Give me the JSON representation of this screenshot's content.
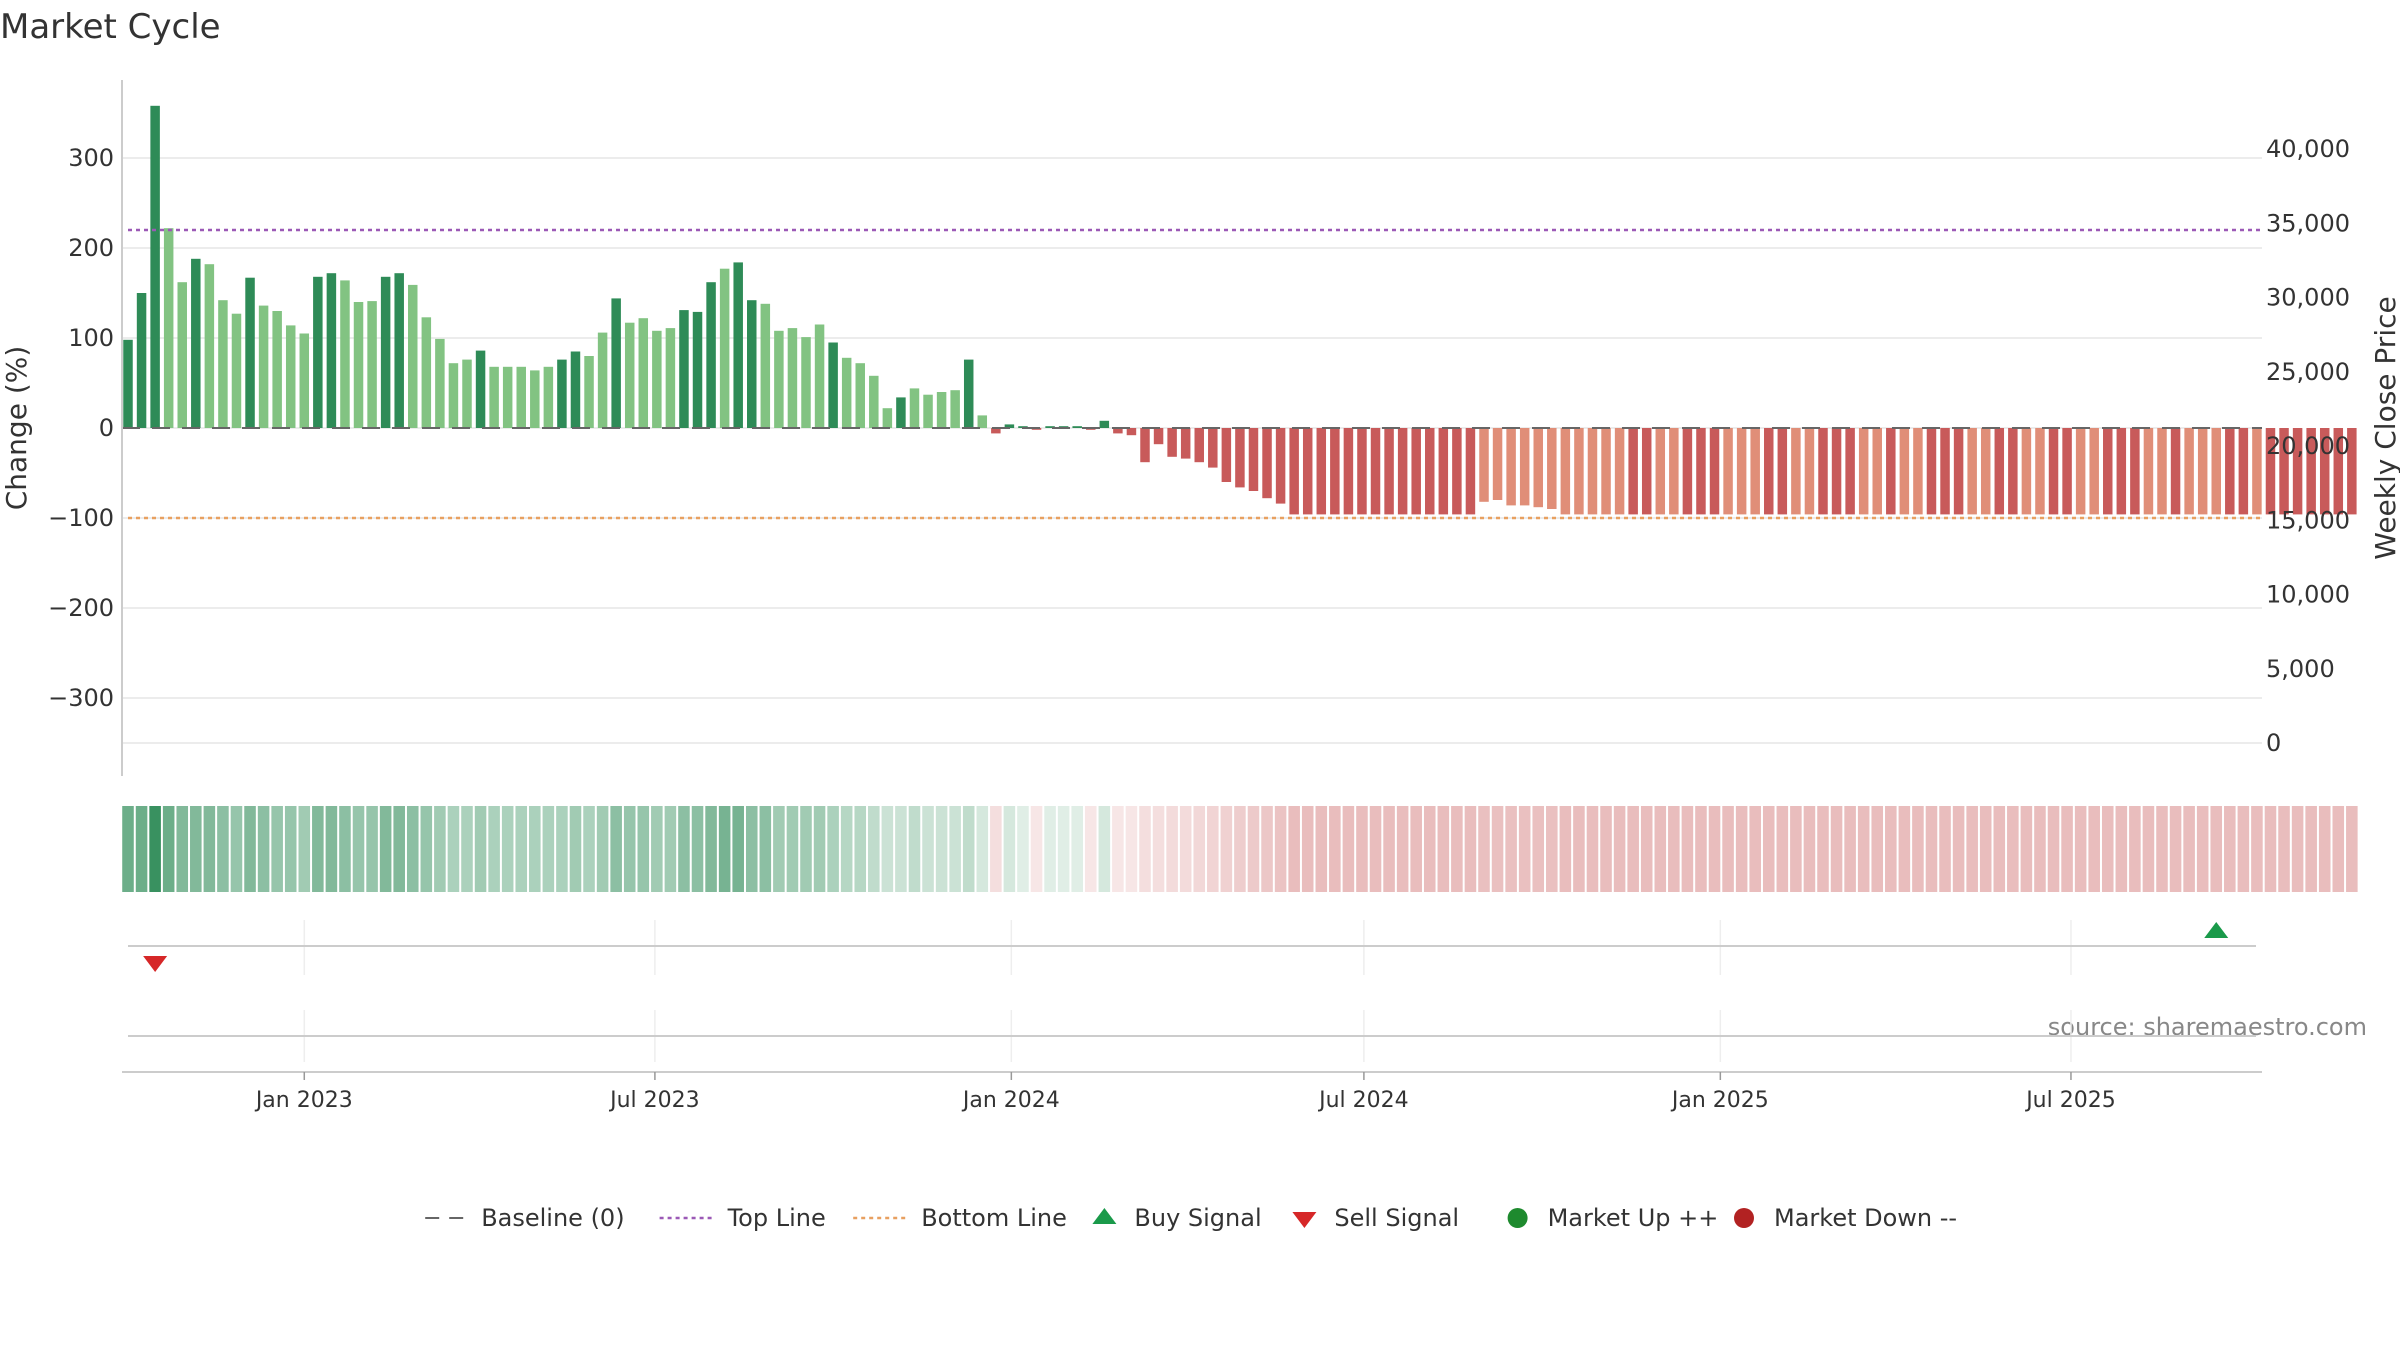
{
  "title": "Market Cycle",
  "source": "source: sharemaestro.com",
  "colors": {
    "bar_up_strong": "#2e8b57",
    "bar_up_light": "#82c382",
    "bar_down_strong": "#c85a5a",
    "bar_down_light": "#e08e78",
    "top_line": "#9b59b6",
    "bottom_line": "#e8a060",
    "baseline": "#666666",
    "buy": "#1a9a4a",
    "sell": "#d62728",
    "market_up": "#1e8a2e",
    "market_down": "#b22222",
    "grid": "#e6e6e6"
  },
  "chart_data": {
    "type": "bar",
    "title": "Market Cycle",
    "ylabel": "Change (%)",
    "y2label": "Weekly Close Price",
    "ylim": [
      -385,
      385
    ],
    "y_ticks": [
      300,
      200,
      100,
      0,
      -100,
      -200,
      -300
    ],
    "y_tick_labels": [
      "300",
      "200",
      "100",
      "0",
      "−100",
      "−200",
      "−300"
    ],
    "y2_ticks": [
      40000,
      35000,
      30000,
      25000,
      20000,
      15000,
      10000,
      5000,
      0
    ],
    "y2_tick_labels": [
      "40,000",
      "35,000",
      "30,000",
      "25,000",
      "20,000",
      "15,000",
      "10,000",
      "5,000",
      "0"
    ],
    "x_tick_labels": [
      "Jan 2023",
      "Jul 2023",
      "Jan 2024",
      "Jul 2024",
      "Jan 2025",
      "Jul 2025"
    ],
    "x_tick_dates": [
      "2023-01-01",
      "2023-07-01",
      "2024-01-01",
      "2024-07-01",
      "2025-01-01",
      "2025-07-01"
    ],
    "start_date": "2022-10-02",
    "week_days": 7,
    "top_line": 220,
    "bottom_line": -100,
    "baseline": 0,
    "values": [
      98,
      150,
      358,
      222,
      162,
      188,
      182,
      142,
      127,
      167,
      136,
      130,
      114,
      105,
      168,
      172,
      164,
      140,
      141,
      168,
      172,
      159,
      123,
      99,
      72,
      76,
      86,
      68,
      68,
      68,
      64,
      68,
      76,
      85,
      80,
      106,
      144,
      117,
      122,
      108,
      111,
      131,
      129,
      162,
      177,
      184,
      142,
      138,
      108,
      111,
      101,
      115,
      95,
      78,
      72,
      58,
      22,
      34,
      44,
      37,
      40,
      42,
      76,
      14,
      -6,
      4,
      2,
      -2,
      2,
      2,
      2,
      -2,
      8,
      -6,
      -8,
      -38,
      -18,
      -32,
      -34,
      -38,
      -44,
      -60,
      -66,
      -70,
      -78,
      -84,
      -96,
      -96,
      -96,
      -96,
      -96,
      -96,
      -96,
      -96,
      -96,
      -96,
      -96,
      -96,
      -96,
      -96,
      -82,
      -80,
      -86,
      -86,
      -88,
      -90,
      -96,
      -96,
      -96,
      -96,
      -96,
      -96,
      -96,
      -96,
      -96,
      -96,
      -96,
      -96,
      -96,
      -96,
      -96,
      -96,
      -96,
      -96,
      -96,
      -96,
      -96,
      -96,
      -96,
      -96,
      -96,
      -96,
      -96,
      -96,
      -96,
      -96,
      -96,
      -96,
      -96,
      -96,
      -96,
      -96,
      -96,
      -96,
      -96,
      -96,
      -96,
      -96,
      -96,
      -96,
      -96,
      -96,
      -96,
      -96,
      -96,
      -96,
      -96,
      -96,
      -96,
      -96,
      -96,
      -96,
      -96,
      -96,
      -96
    ],
    "light_bars": [
      3,
      4,
      6,
      7,
      8,
      10,
      11,
      12,
      13,
      16,
      17,
      18,
      21,
      22,
      23,
      24,
      25,
      27,
      28,
      29,
      30,
      31,
      34,
      35,
      37,
      38,
      39,
      40,
      44,
      47,
      48,
      49,
      50,
      51,
      53,
      54,
      55,
      56,
      58,
      59,
      60,
      61,
      63,
      100,
      101,
      102,
      103,
      104,
      105,
      106,
      107,
      108,
      109,
      110,
      113,
      114,
      118,
      119,
      120,
      123,
      124,
      128,
      129,
      131,
      132,
      136,
      137,
      140,
      141,
      144,
      145,
      149,
      150,
      152,
      153,
      154,
      157
    ],
    "strength_band_alpha": [
      0.7,
      0.7,
      0.95,
      0.7,
      0.6,
      0.6,
      0.6,
      0.55,
      0.5,
      0.6,
      0.55,
      0.5,
      0.5,
      0.45,
      0.6,
      0.6,
      0.55,
      0.5,
      0.5,
      0.6,
      0.6,
      0.55,
      0.5,
      0.45,
      0.4,
      0.4,
      0.45,
      0.4,
      0.4,
      0.4,
      0.4,
      0.4,
      0.4,
      0.45,
      0.4,
      0.45,
      0.55,
      0.5,
      0.5,
      0.45,
      0.45,
      0.55,
      0.55,
      0.6,
      0.65,
      0.65,
      0.55,
      0.55,
      0.45,
      0.45,
      0.45,
      0.45,
      0.4,
      0.35,
      0.35,
      0.3,
      0.25,
      0.25,
      0.3,
      0.25,
      0.25,
      0.25,
      0.3,
      0.2,
      0.2,
      0.2,
      0.15,
      0.15,
      0.15,
      0.15,
      0.15,
      0.15,
      0.2,
      0.15,
      0.15,
      0.2,
      0.2,
      0.22,
      0.22,
      0.24,
      0.26,
      0.28,
      0.3,
      0.32,
      0.34,
      0.36,
      0.4,
      0.4,
      0.4,
      0.4,
      0.4,
      0.4,
      0.4,
      0.4,
      0.4,
      0.4,
      0.4,
      0.4,
      0.4,
      0.4,
      0.38,
      0.38,
      0.38,
      0.38,
      0.38,
      0.38,
      0.4,
      0.4,
      0.4,
      0.4,
      0.4,
      0.4,
      0.4,
      0.4,
      0.4,
      0.4,
      0.4,
      0.4,
      0.4,
      0.4,
      0.4,
      0.4,
      0.4,
      0.4,
      0.4,
      0.4,
      0.4,
      0.4,
      0.4,
      0.4,
      0.4,
      0.4,
      0.4,
      0.4,
      0.4,
      0.4,
      0.4,
      0.4,
      0.4,
      0.4,
      0.4,
      0.4,
      0.4,
      0.4,
      0.4,
      0.4,
      0.4,
      0.4,
      0.4,
      0.4,
      0.4,
      0.4,
      0.4,
      0.4,
      0.4,
      0.4,
      0.4,
      0.4,
      0.4,
      0.4,
      0.4,
      0.4,
      0.4,
      0.4,
      0.4,
      0.4
    ],
    "buy_signals": [
      "2025-09-14"
    ],
    "sell_signals": [
      "2022-10-16"
    ],
    "legend_position": "bottom",
    "legend": [
      {
        "label": "Baseline (0)",
        "symbol": "dash",
        "color": "#666666"
      },
      {
        "label": "Top Line",
        "symbol": "dotted",
        "color": "#9b59b6"
      },
      {
        "label": "Bottom Line",
        "symbol": "dotted",
        "color": "#e8a060"
      },
      {
        "label": "Buy Signal",
        "symbol": "triangle-up",
        "color": "#1a9a4a"
      },
      {
        "label": "Sell Signal",
        "symbol": "triangle-down",
        "color": "#d62728"
      },
      {
        "label": "Market Up ++",
        "symbol": "circle",
        "color": "#1e8a2e"
      },
      {
        "label": "Market Down --",
        "symbol": "circle",
        "color": "#b22222"
      }
    ]
  }
}
